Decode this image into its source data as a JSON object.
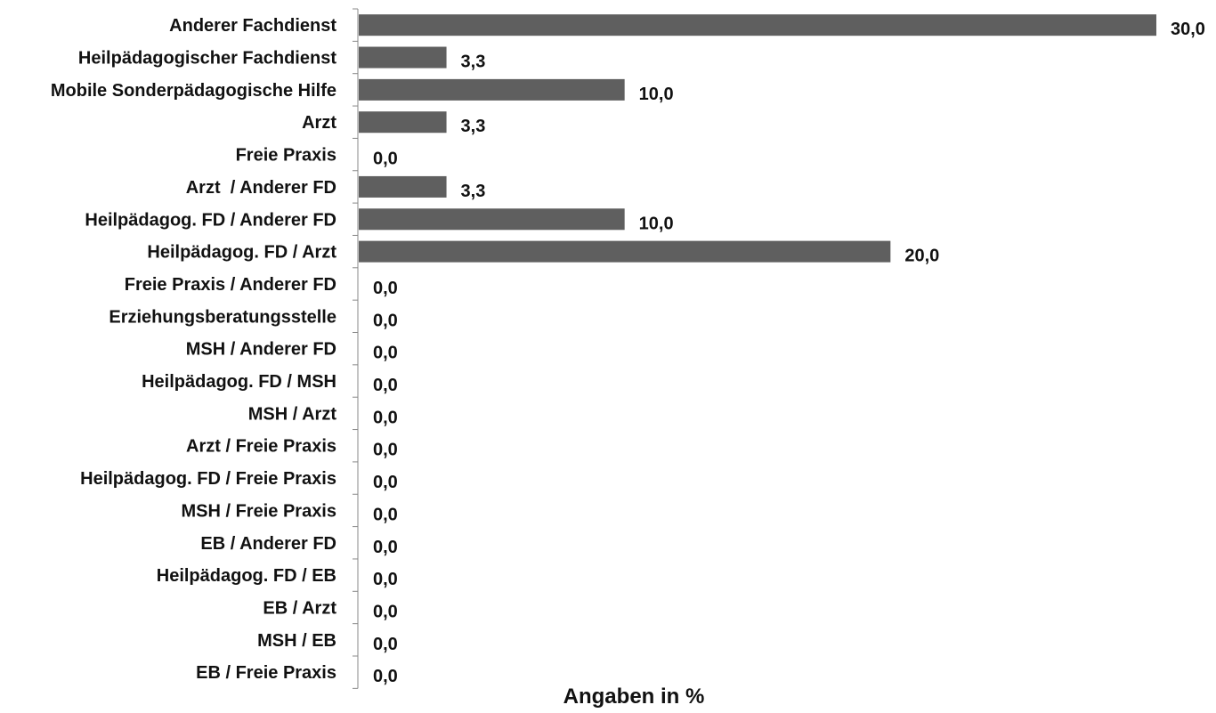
{
  "chart_data": {
    "type": "bar",
    "orientation": "horizontal",
    "categories": [
      "Anderer Fachdienst",
      "Heilpädagogischer Fachdienst",
      "Mobile Sonderpädagogische Hilfe",
      "Arzt",
      "Freie Praxis",
      "Arzt  / Anderer FD",
      "Heilpädagog. FD / Anderer FD",
      "Heilpädagog. FD / Arzt",
      "Freie Praxis / Anderer FD",
      "Erziehungsberatungsstelle",
      "MSH / Anderer FD",
      "Heilpädagog. FD / MSH",
      "MSH / Arzt",
      "Arzt / Freie Praxis",
      "Heilpädagog. FD / Freie Praxis",
      "MSH / Freie Praxis",
      "EB / Anderer FD",
      "Heilpädagog. FD / EB",
      "EB / Arzt",
      "MSH / EB",
      "EB / Freie Praxis"
    ],
    "values": [
      30.0,
      3.3,
      10.0,
      3.3,
      0.0,
      3.3,
      10.0,
      20.0,
      0.0,
      0.0,
      0.0,
      0.0,
      0.0,
      0.0,
      0.0,
      0.0,
      0.0,
      0.0,
      0.0,
      0.0,
      0.0
    ],
    "value_labels": [
      "30,0",
      "3,3",
      "10,0",
      "3,3",
      "0,0",
      "3,3",
      "10,0",
      "20,0",
      "0,0",
      "0,0",
      "0,0",
      "0,0",
      "0,0",
      "0,0",
      "0,0",
      "0,0",
      "0,0",
      "0,0",
      "0,0",
      "0,0",
      "0,0"
    ],
    "xlabel": "Angaben in %",
    "xlim": [
      0,
      30
    ],
    "grid": false,
    "legend": "none",
    "bar_color": "#5f5f5f"
  }
}
